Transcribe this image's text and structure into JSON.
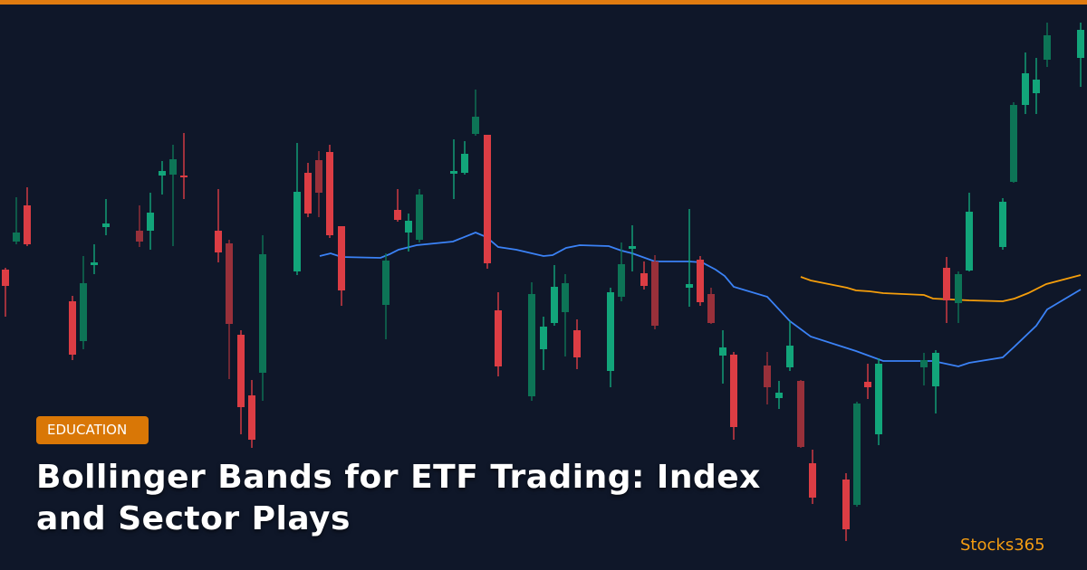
{
  "badge": "EDUCATION",
  "title": "Bollinger Bands for ETF Trading: Index and Sector Plays",
  "brand": "Stocks365"
}
